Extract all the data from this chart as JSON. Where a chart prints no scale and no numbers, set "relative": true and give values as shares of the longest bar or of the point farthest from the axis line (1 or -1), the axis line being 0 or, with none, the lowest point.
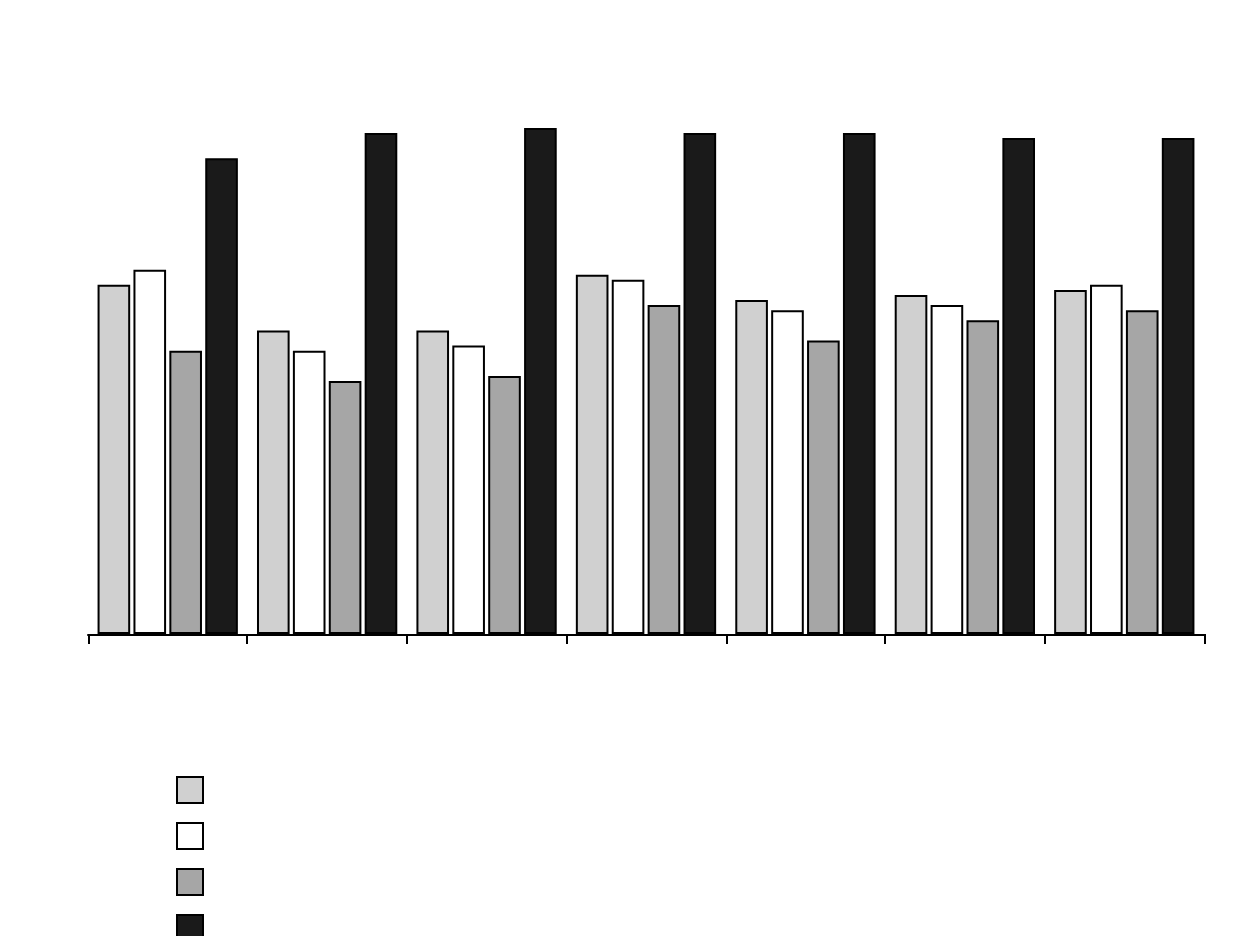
{
  "chart_data": {
    "type": "bar",
    "relative": true,
    "categories": [
      null,
      null,
      null,
      null,
      null,
      null,
      null
    ],
    "series": [
      {
        "color": "#d0d0d0",
        "values": [
          0.69,
          0.6,
          0.6,
          0.71,
          0.66,
          0.67,
          0.68
        ]
      },
      {
        "color": "#ffffff",
        "values": [
          0.72,
          0.56,
          0.57,
          0.7,
          0.64,
          0.65,
          0.69
        ]
      },
      {
        "color": "#a6a6a6",
        "values": [
          0.56,
          0.5,
          0.51,
          0.65,
          0.58,
          0.62,
          0.64
        ]
      },
      {
        "color": "#1a1a1a",
        "values": [
          0.94,
          0.99,
          1,
          0.99,
          0.99,
          0.98,
          0.98
        ]
      }
    ]
  }
}
